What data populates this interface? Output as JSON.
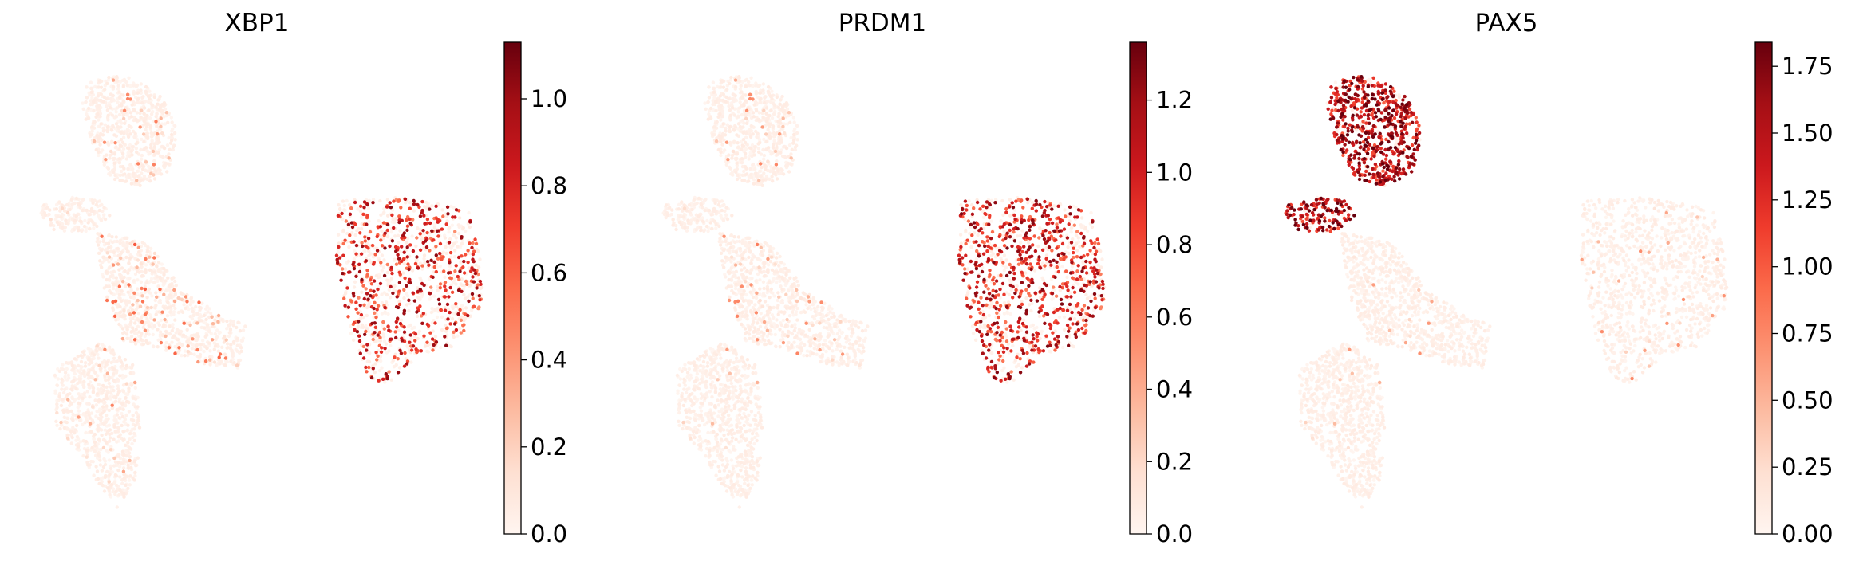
{
  "figure": {
    "colormap": "Reds",
    "colormap_stops": [
      "#fff5f0",
      "#fee0d2",
      "#fcbba1",
      "#fc9272",
      "#fb6a4a",
      "#ef3b2c",
      "#cb181d",
      "#a50f15",
      "#67000d"
    ]
  },
  "chart_data": [
    {
      "type": "scatter",
      "title": "XBP1",
      "xlabel": "",
      "ylabel": "",
      "grid": false,
      "colorbar": {
        "vmin": 0.0,
        "vmax": 1.13,
        "ticks": [
          0.0,
          0.2,
          0.4,
          0.6,
          0.8,
          1.0
        ],
        "tick_labels": [
          "0.0",
          "0.2",
          "0.4",
          "0.6",
          "0.8",
          "1.0"
        ]
      },
      "expression_by_cluster": {
        "upper_left_cluster": {
          "mean": 0.06,
          "high_fraction": 0.05
        },
        "left_arm_cluster": {
          "mean": 0.04,
          "high_fraction": 0.02
        },
        "center_cluster": {
          "mean": 0.18,
          "high_fraction": 0.12
        },
        "lower_left_cluster": {
          "mean": 0.08,
          "high_fraction": 0.05
        },
        "right_block_cluster": {
          "mean": 0.62,
          "high_fraction": 0.45
        }
      }
    },
    {
      "type": "scatter",
      "title": "PRDM1",
      "xlabel": "",
      "ylabel": "",
      "grid": false,
      "colorbar": {
        "vmin": 0.0,
        "vmax": 1.36,
        "ticks": [
          0.0,
          0.2,
          0.4,
          0.6,
          0.8,
          1.0,
          1.2
        ],
        "tick_labels": [
          "0.0",
          "0.2",
          "0.4",
          "0.6",
          "0.8",
          "1.0",
          "1.2"
        ]
      },
      "expression_by_cluster": {
        "upper_left_cluster": {
          "mean": 0.05,
          "high_fraction": 0.04
        },
        "left_arm_cluster": {
          "mean": 0.03,
          "high_fraction": 0.01
        },
        "center_cluster": {
          "mean": 0.08,
          "high_fraction": 0.06
        },
        "lower_left_cluster": {
          "mean": 0.05,
          "high_fraction": 0.03
        },
        "right_block_cluster": {
          "mean": 0.78,
          "high_fraction": 0.6
        }
      }
    },
    {
      "type": "scatter",
      "title": "PAX5",
      "xlabel": "",
      "ylabel": "",
      "grid": false,
      "colorbar": {
        "vmin": 0.0,
        "vmax": 1.84,
        "ticks": [
          0.0,
          0.25,
          0.5,
          0.75,
          1.0,
          1.25,
          1.5,
          1.75
        ],
        "tick_labels": [
          "0.00",
          "0.25",
          "0.50",
          "0.75",
          "1.00",
          "1.25",
          "1.50",
          "1.75"
        ]
      },
      "expression_by_cluster": {
        "upper_left_cluster": {
          "mean": 1.25,
          "high_fraction": 0.85
        },
        "left_arm_cluster": {
          "mean": 1.3,
          "high_fraction": 0.8
        },
        "center_cluster": {
          "mean": 0.05,
          "high_fraction": 0.02
        },
        "lower_left_cluster": {
          "mean": 0.07,
          "high_fraction": 0.03
        },
        "right_block_cluster": {
          "mean": 0.08,
          "high_fraction": 0.03
        }
      }
    }
  ]
}
